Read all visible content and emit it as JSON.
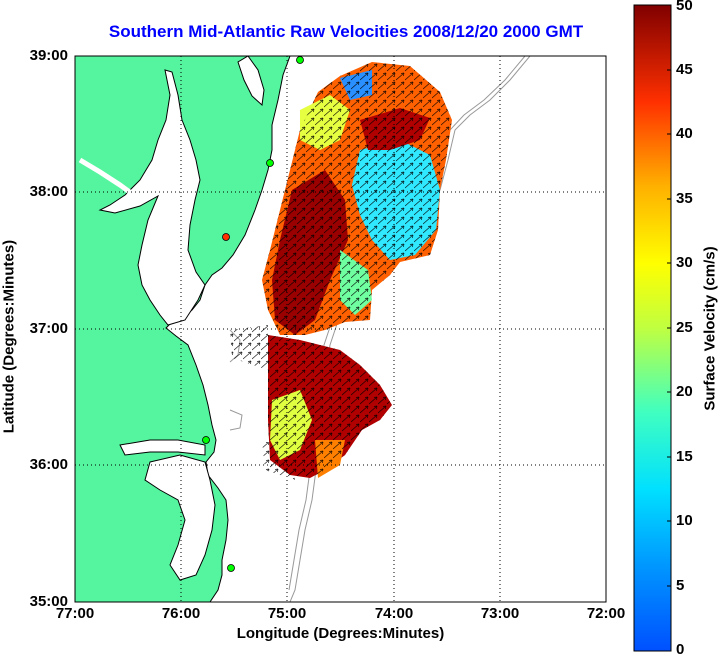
{
  "title": "Southern Mid-Atlantic Raw Velocities 2008/12/20 2000 GMT",
  "xlabel": "Longitude (Degrees:Minutes)",
  "ylabel": "Latitude (Degrees:Minutes)",
  "colorbar_label": "Surface Velocity (cm/s)",
  "x_ticks": [
    "77:00",
    "76:00",
    "75:00",
    "74:00",
    "73:00",
    "72:00"
  ],
  "y_ticks": [
    "39:00",
    "38:00",
    "37:00",
    "36:00",
    "35:00"
  ],
  "colorbar_ticks": [
    "50",
    "45",
    "40",
    "35",
    "30",
    "25",
    "20",
    "15",
    "10",
    "5",
    "0"
  ],
  "colors": {
    "land": "#55f5a0",
    "water": "#ffffff",
    "coastline": "#000000",
    "bathymetry": "#999999",
    "title": "#0000ff"
  },
  "map_data": {
    "lon_range": [
      -77,
      -72
    ],
    "lat_range": [
      35,
      39
    ],
    "velocity_range_cm_s": [
      0,
      50
    ],
    "colormap": "jet",
    "grid": true
  }
}
